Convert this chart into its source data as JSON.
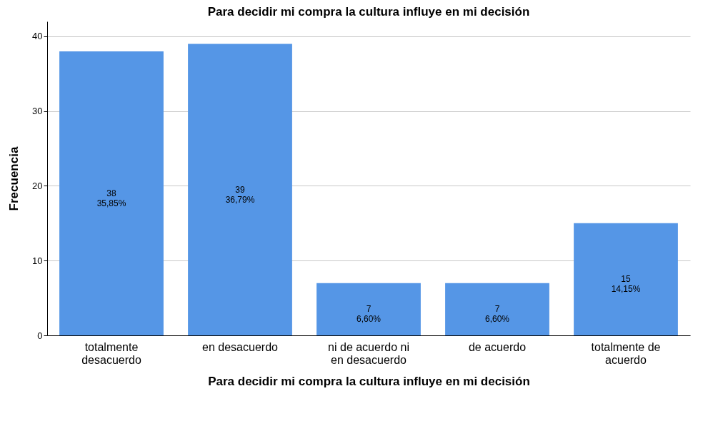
{
  "chart_data": {
    "type": "bar",
    "title": "Para decidir mi compra la cultura influye en mi decisión",
    "xlabel": "Para decidir mi compra la cultura influye en mi decisión",
    "ylabel": "Frecuencia",
    "categories": [
      "totalmente desacuerdo",
      "en desacuerdo",
      "ni de acuerdo ni en desacuerdo",
      "de acuerdo",
      "totalmente de acuerdo"
    ],
    "values": [
      38,
      39,
      7,
      7,
      15
    ],
    "value_labels": [
      "38\n35,85%",
      "39\n36,79%",
      "7\n6,60%",
      "7\n6,60%",
      "15\n14,15%"
    ],
    "color": "#5596e6",
    "ylim": [
      0,
      42
    ],
    "yticks": [
      0,
      10,
      20,
      30,
      40
    ],
    "grid": "y"
  }
}
